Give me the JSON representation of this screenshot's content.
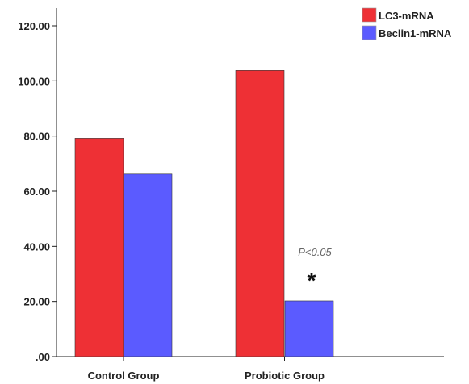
{
  "chart_data": {
    "type": "bar",
    "categories": [
      "Control Group",
      "Probiotic Group"
    ],
    "series": [
      {
        "name": "LC3-mRNA",
        "color": "#ee3035",
        "values": [
          79.2,
          103.8
        ]
      },
      {
        "name": "Beclin1-mRNA",
        "color": "#5b5bff",
        "values": [
          66.2,
          20.2
        ]
      }
    ],
    "ylim": [
      0,
      120
    ],
    "yticks": [
      {
        "value": 0,
        "label": ".00"
      },
      {
        "value": 20,
        "label": "20.00"
      },
      {
        "value": 40,
        "label": "40.00"
      },
      {
        "value": 60,
        "label": "60.00"
      },
      {
        "value": 80,
        "label": "80.00"
      },
      {
        "value": 100,
        "label": "100.00"
      },
      {
        "value": 120,
        "label": "120.00"
      }
    ],
    "legend": "top-right",
    "grid": false,
    "annotations": [
      {
        "category": "Probiotic Group",
        "series": "Beclin1-mRNA",
        "pvalue": "P<0.05",
        "mark": "*"
      }
    ]
  }
}
